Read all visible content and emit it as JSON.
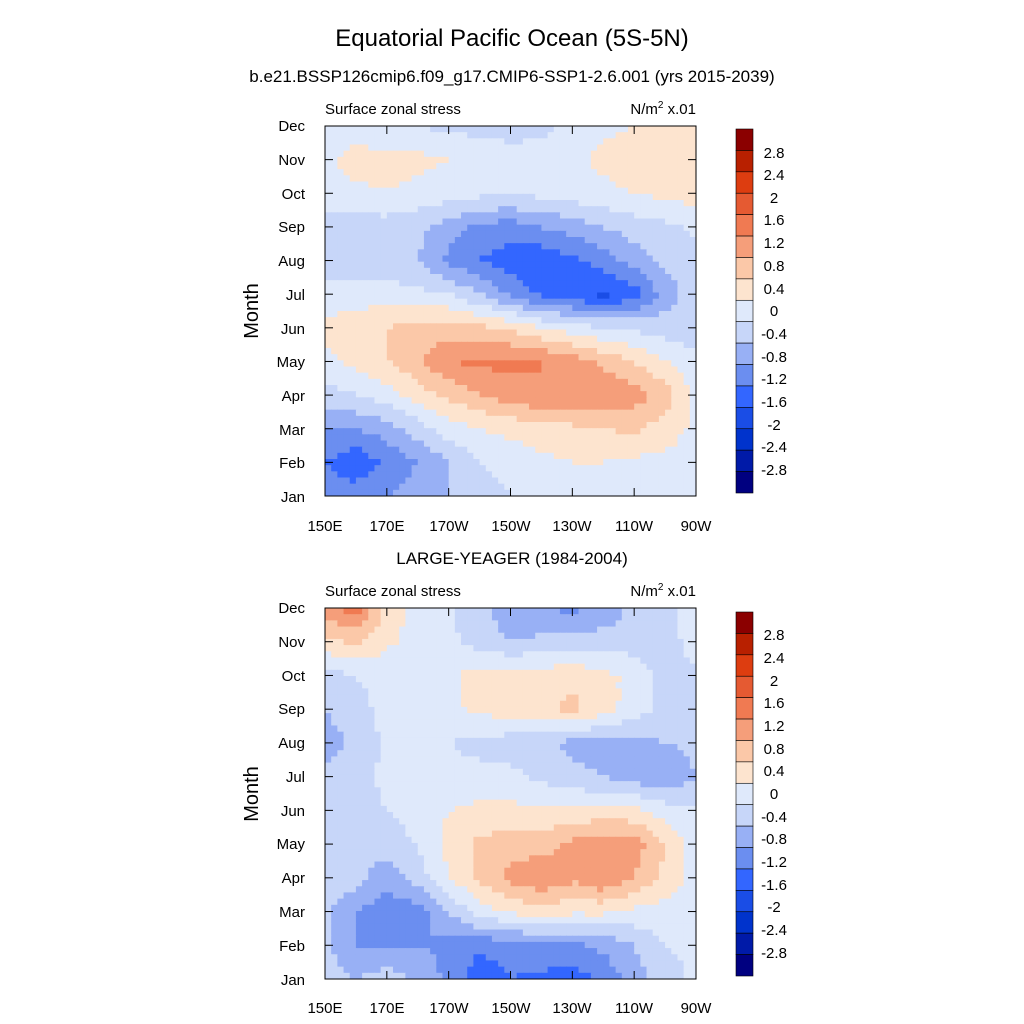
{
  "figure": {
    "title": "Equatorial Pacific Ocean (5S-5N)"
  },
  "chart_data": [
    {
      "type": "heatmap",
      "title": "b.e21.BSSP126cmip6.f09_g17.CMIP6-SSP1-2.6.001 (yrs 2015-2039)",
      "left_label": "Surface zonal stress",
      "units_base": "N/m",
      "units_sup": "2",
      "units_suffix": " x.01",
      "ylabel": "Month",
      "x_ticks": [
        "150E",
        "170E",
        "170W",
        "150W",
        "130W",
        "110W",
        "90W"
      ],
      "y_ticks": [
        "Jan",
        "Feb",
        "Mar",
        "Apr",
        "May",
        "Jun",
        "Jul",
        "Aug",
        "Sep",
        "Oct",
        "Nov",
        "Dec"
      ],
      "xlim": [
        150,
        270
      ],
      "ylim": [
        1,
        12
      ],
      "x_grid": [
        150,
        160,
        170,
        180,
        190,
        200,
        210,
        220,
        230,
        240,
        250,
        260,
        270
      ],
      "months": [
        1,
        2,
        3,
        4,
        5,
        6,
        7,
        8,
        9,
        10,
        11,
        12
      ],
      "values": [
        [
          -1.0,
          -1.0,
          -0.8,
          -0.6,
          -0.4,
          -0.2,
          0.0,
          0.2,
          0.2,
          0.2,
          0.2,
          0.2,
          0.1
        ],
        [
          -1.2,
          -1.5,
          -1.1,
          -0.8,
          -0.4,
          0.0,
          0.2,
          0.3,
          0.4,
          0.4,
          0.3,
          0.3,
          0.2
        ],
        [
          -0.8,
          -0.8,
          -0.6,
          -0.2,
          0.2,
          0.4,
          0.5,
          0.6,
          0.7,
          0.8,
          0.9,
          0.6,
          0.3
        ],
        [
          -0.2,
          0.0,
          0.2,
          0.6,
          0.9,
          1.2,
          1.4,
          1.6,
          1.6,
          1.6,
          1.4,
          1.0,
          0.3
        ],
        [
          0.3,
          0.5,
          0.8,
          1.1,
          1.6,
          1.7,
          1.7,
          1.6,
          1.4,
          1.1,
          0.8,
          0.4,
          0.1
        ],
        [
          0.5,
          0.6,
          0.8,
          1.0,
          1.0,
          0.9,
          0.7,
          0.4,
          0.2,
          0.0,
          -0.1,
          -0.2,
          -0.2
        ],
        [
          0.2,
          0.2,
          0.2,
          0.1,
          0.0,
          -0.4,
          -0.9,
          -1.3,
          -1.5,
          -1.7,
          -1.4,
          -0.6,
          -0.2
        ],
        [
          -0.2,
          -0.2,
          -0.3,
          -0.4,
          -0.9,
          -1.2,
          -1.4,
          -1.5,
          -1.3,
          -1.0,
          -0.6,
          -0.3,
          -0.2
        ],
        [
          -0.1,
          -0.2,
          -0.2,
          -0.3,
          -0.6,
          -0.9,
          -1.0,
          -0.8,
          -0.6,
          -0.4,
          -0.2,
          -0.1,
          0.1
        ],
        [
          0.2,
          0.3,
          0.4,
          0.3,
          0.2,
          0.1,
          0.1,
          0.1,
          0.2,
          0.3,
          0.4,
          0.5,
          0.6
        ],
        [
          0.3,
          0.6,
          0.5,
          0.5,
          0.4,
          0.4,
          0.3,
          0.2,
          0.3,
          0.5,
          0.6,
          0.6,
          0.6
        ],
        [
          0.2,
          0.1,
          0.1,
          0.0,
          -0.1,
          -0.2,
          -0.3,
          -0.1,
          0.1,
          0.3,
          0.4,
          0.5,
          0.6
        ]
      ]
    },
    {
      "type": "heatmap",
      "title": "LARGE-YEAGER (1984-2004)",
      "left_label": "Surface zonal stress",
      "units_base": "N/m",
      "units_sup": "2",
      "units_suffix": " x.01",
      "ylabel": "Month",
      "x_ticks": [
        "150E",
        "170E",
        "170W",
        "150W",
        "130W",
        "110W",
        "90W"
      ],
      "y_ticks": [
        "Jan",
        "Feb",
        "Mar",
        "Apr",
        "May",
        "Jun",
        "Jul",
        "Aug",
        "Sep",
        "Oct",
        "Nov",
        "Dec"
      ],
      "xlim": [
        150,
        270
      ],
      "ylim": [
        1,
        12
      ],
      "x_grid": [
        150,
        160,
        170,
        180,
        190,
        200,
        210,
        220,
        230,
        240,
        250,
        260,
        270
      ],
      "months": [
        1,
        2,
        3,
        4,
        5,
        6,
        7,
        8,
        9,
        10,
        11,
        12
      ],
      "values": [
        [
          -0.2,
          -0.4,
          -0.2,
          -0.5,
          -0.9,
          -1.5,
          -1.2,
          -1.3,
          -1.4,
          -1.1,
          -0.6,
          -0.2,
          0.1
        ],
        [
          -0.3,
          -0.8,
          -0.8,
          -0.8,
          -0.9,
          -1.1,
          -1.0,
          -0.9,
          -0.9,
          -0.7,
          -0.4,
          0.0,
          0.1
        ],
        [
          -0.3,
          -0.8,
          -1.0,
          -1.0,
          -0.4,
          0.2,
          0.5,
          0.6,
          0.5,
          0.5,
          0.3,
          0.2,
          0.1
        ],
        [
          -0.2,
          -0.2,
          -0.7,
          -0.2,
          0.4,
          0.9,
          1.3,
          1.6,
          1.3,
          1.6,
          1.2,
          0.7,
          0.2
        ],
        [
          -0.2,
          -0.3,
          -0.2,
          0.0,
          0.5,
          0.9,
          1.0,
          1.0,
          1.3,
          1.5,
          1.4,
          0.8,
          0.2
        ],
        [
          -0.2,
          -0.1,
          0.0,
          0.2,
          0.4,
          0.5,
          0.5,
          0.5,
          0.5,
          0.5,
          0.5,
          0.2,
          0.1
        ],
        [
          -0.3,
          -0.2,
          0.1,
          0.1,
          0.1,
          0.1,
          0.1,
          -0.1,
          -0.3,
          -0.4,
          -0.6,
          -0.8,
          -0.4
        ],
        [
          -0.6,
          -0.3,
          0.1,
          0.2,
          0.0,
          -0.1,
          -0.2,
          -0.3,
          -0.5,
          -0.6,
          -0.5,
          -0.4,
          -0.3
        ],
        [
          -0.4,
          -0.1,
          0.1,
          0.2,
          0.3,
          0.5,
          0.6,
          0.7,
          0.9,
          0.6,
          0.2,
          -0.1,
          -0.1
        ],
        [
          -0.2,
          0.0,
          0.1,
          0.1,
          0.3,
          0.6,
          0.6,
          0.6,
          0.7,
          0.5,
          0.3,
          -0.2,
          -0.1
        ],
        [
          0.7,
          0.9,
          0.5,
          0.2,
          0.1,
          -0.2,
          -0.4,
          -0.3,
          -0.2,
          -0.2,
          -0.2,
          -0.2,
          0.2
        ],
        [
          1.4,
          1.8,
          0.6,
          0.3,
          0.1,
          -0.3,
          -0.6,
          -0.8,
          -0.9,
          -0.7,
          -0.3,
          -0.1,
          0.2
        ]
      ]
    }
  ],
  "colorbar": {
    "labels": [
      "2.8",
      "2.4",
      "2",
      "1.6",
      "1.2",
      "0.8",
      "0.4",
      "0",
      "-0.4",
      "-0.8",
      "-1.2",
      "-1.6",
      "-2",
      "-2.4",
      "-2.8"
    ],
    "levels": [
      -2.8,
      -2.4,
      -2.0,
      -1.6,
      -1.2,
      -0.8,
      -0.4,
      0.0,
      0.4,
      0.8,
      1.2,
      1.6,
      2.0,
      2.4,
      2.8
    ],
    "colors": [
      "#000080",
      "#001aa8",
      "#0033cc",
      "#1a4de6",
      "#3366ff",
      "#6b8ef0",
      "#98b0f5",
      "#c7d6f9",
      "#dfe9fb",
      "#fde4cf",
      "#fbc8a8",
      "#f59e7a",
      "#f07a52",
      "#e55a32",
      "#dd3d10",
      "#b82000",
      "#8b0000"
    ]
  }
}
